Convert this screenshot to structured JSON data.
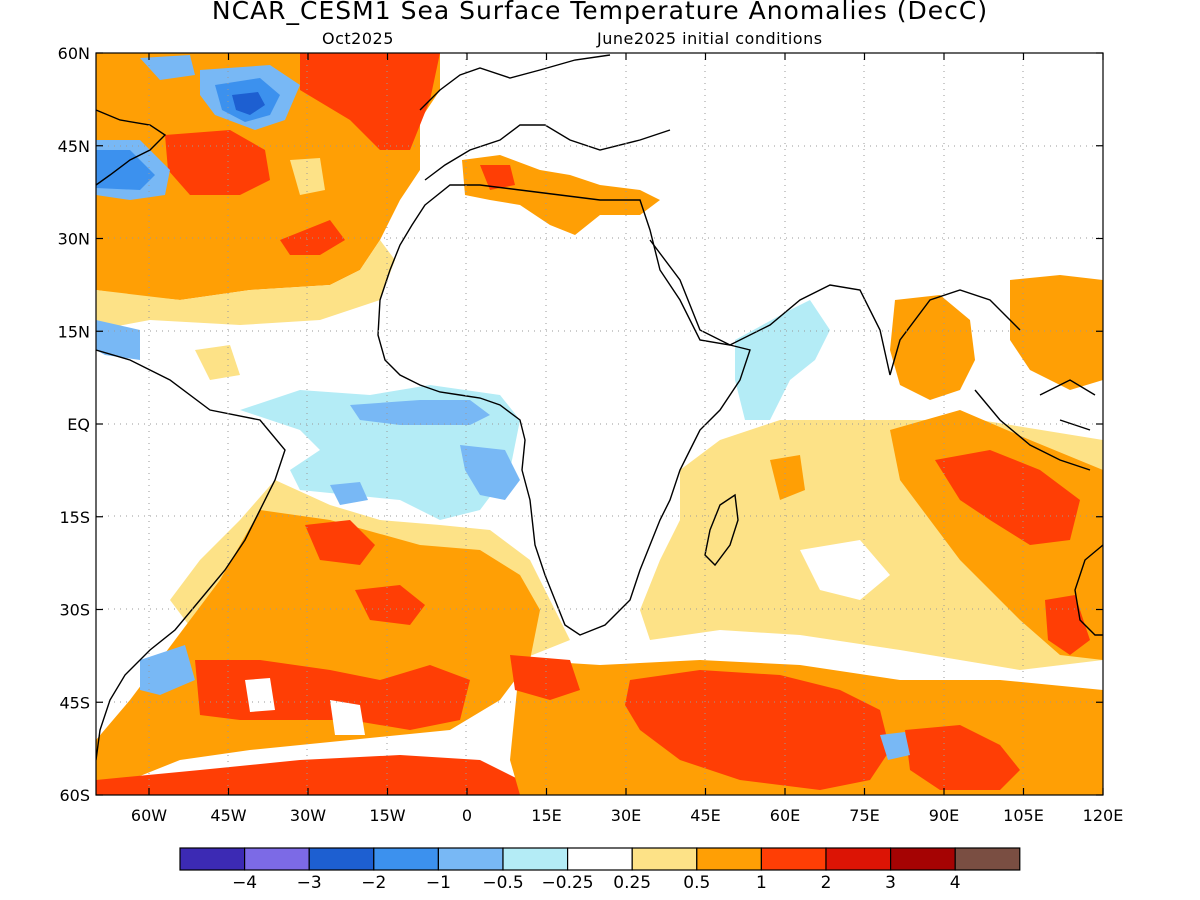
{
  "title": "NCAR_CESM1 Sea Surface Temperature Anomalies (DecC)",
  "subtitle_left": "Oct2025",
  "subtitle_right": "June2025 initial conditions",
  "map": {
    "lon_range": [
      -70,
      120
    ],
    "lat_range": [
      -60,
      60
    ],
    "lat_ticks": [
      {
        "value": 60,
        "label": "60N"
      },
      {
        "value": 45,
        "label": "45N"
      },
      {
        "value": 30,
        "label": "30N"
      },
      {
        "value": 15,
        "label": "15N"
      },
      {
        "value": 0,
        "label": "EQ"
      },
      {
        "value": -15,
        "label": "15S"
      },
      {
        "value": -30,
        "label": "30S"
      },
      {
        "value": -45,
        "label": "45S"
      },
      {
        "value": -60,
        "label": "60S"
      }
    ],
    "lon_ticks": [
      {
        "value": -60,
        "label": "60W"
      },
      {
        "value": -45,
        "label": "45W"
      },
      {
        "value": -30,
        "label": "30W"
      },
      {
        "value": -15,
        "label": "15W"
      },
      {
        "value": 0,
        "label": "0"
      },
      {
        "value": 15,
        "label": "15E"
      },
      {
        "value": 30,
        "label": "30E"
      },
      {
        "value": 45,
        "label": "45E"
      },
      {
        "value": 60,
        "label": "60E"
      },
      {
        "value": 75,
        "label": "75E"
      },
      {
        "value": 90,
        "label": "90E"
      },
      {
        "value": 105,
        "label": "105E"
      },
      {
        "value": 120,
        "label": "120E"
      }
    ],
    "gridlines": "dotted"
  },
  "colorbar": {
    "colors": [
      "#3c2ab4",
      "#7c6ae6",
      "#1d5fd1",
      "#3c91ee",
      "#78b8f5",
      "#b4ecf6",
      "#ffffff",
      "#fde287",
      "#ff9f05",
      "#ff3e05",
      "#dc1405",
      "#a50303",
      "#7a4e42"
    ],
    "labels": [
      "−4",
      "−3",
      "−2",
      "−1",
      "−0.5",
      "−0.25",
      "0.25",
      "0.5",
      "1",
      "2",
      "3",
      "4"
    ]
  }
}
